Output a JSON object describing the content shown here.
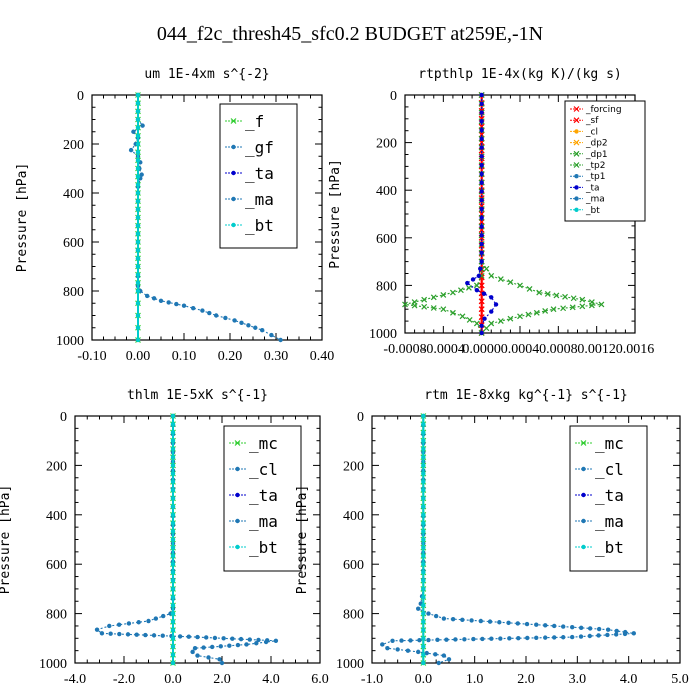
{
  "figure_title": "044_f2c_thresh45_sfc0.2  BUDGET at259E,-1N",
  "colors": {
    "forcing": "#ff0000",
    "sf": "#ff0000",
    "cl_orange": "#ffa500",
    "dp2": "#ffa500",
    "dp1": "#2ca02c",
    "tp2": "#2ca02c",
    "tp1": "#1f77b4",
    "ta": "#0000cc",
    "ma": "#1f77b4",
    "bt": "#00cccc",
    "f": "#32cd32",
    "gf": "#1f77b4",
    "mc": "#32cd32",
    "cl": "#1f77b4"
  },
  "chart_data": [
    {
      "type": "line",
      "title": "um   1E-4xm s^{-2}",
      "ylabel": "Pressure [hPa]",
      "xlim": [
        -0.1,
        0.4
      ],
      "ylim": [
        1000,
        0
      ],
      "xticks": [
        "-0.10",
        "0.00",
        "0.10",
        "0.20",
        "0.30",
        "0.40"
      ],
      "yticks": [
        "0",
        "200",
        "400",
        "600",
        "800",
        "1000"
      ],
      "legend": {
        "style": "big",
        "entries": [
          "_f",
          "_gf",
          "_ta",
          "_ma",
          "_bt"
        ]
      },
      "series": [
        {
          "name": "_f",
          "color": "f",
          "marker": "x",
          "pressure": [
            0,
            100,
            200,
            300,
            400,
            500,
            600,
            700,
            800,
            850,
            900,
            950,
            1000
          ],
          "values": [
            0,
            0,
            0,
            0,
            0,
            0,
            0,
            0,
            0,
            0,
            0,
            0,
            0
          ]
        },
        {
          "name": "_gf",
          "color": "gf",
          "marker": "dot",
          "pressure": [
            0,
            100,
            125,
            150,
            175,
            200,
            225,
            250,
            275,
            300,
            325,
            340,
            375,
            400,
            500,
            600,
            700,
            780,
            800,
            820,
            840,
            860,
            880,
            900,
            920,
            940,
            960,
            980,
            1000
          ],
          "values": [
            0,
            0,
            0.01,
            -0.01,
            0,
            -0.005,
            -0.015,
            0,
            0.005,
            0.003,
            0.008,
            0.005,
            0,
            0,
            0,
            0,
            0,
            0,
            0.005,
            0.02,
            0.05,
            0.1,
            0.14,
            0.17,
            0.21,
            0.24,
            0.27,
            0.29,
            0.31
          ]
        },
        {
          "name": "_bt",
          "color": "bt",
          "marker": "dot",
          "pressure": [
            0,
            100,
            200,
            300,
            400,
            500,
            600,
            700,
            800,
            850,
            900,
            950,
            1000
          ],
          "values": [
            0,
            0,
            0,
            0,
            0,
            0,
            0,
            0,
            0,
            0,
            0,
            0,
            0
          ]
        }
      ]
    },
    {
      "type": "line",
      "title": "rtpthlp   1E-4x(kg K)/(kg s)",
      "ylabel": "Pressure [hPa]",
      "xlim": [
        -0.0008,
        0.0016
      ],
      "ylim": [
        1000,
        0
      ],
      "xticks": [
        "-0.0008",
        "-0.0004",
        "0.0000",
        "0.0004",
        "0.0008",
        "0.0012",
        "0.0016"
      ],
      "yticks": [
        "0",
        "200",
        "400",
        "600",
        "800",
        "1000"
      ],
      "legend": {
        "style": "small",
        "entries": [
          "_forcing",
          "_sf",
          "_cl",
          "_dp2",
          "_dp1",
          "_tp2",
          "_tp1",
          "_ta",
          "_ma",
          "_bt"
        ]
      },
      "series": [
        {
          "name": "_forcing",
          "color": "forcing",
          "marker": "x",
          "pressure": [
            0,
            100,
            200,
            300,
            400,
            500,
            600,
            700,
            800,
            900,
            1000
          ],
          "values": [
            0,
            0,
            0,
            0,
            0,
            0,
            0,
            0,
            0,
            0,
            0
          ]
        },
        {
          "name": "_sf",
          "color": "sf",
          "marker": "x",
          "pressure": [
            0,
            100,
            200,
            300,
            400,
            500,
            600,
            700,
            800,
            900,
            1000
          ],
          "values": [
            0,
            0,
            0,
            0,
            0,
            0,
            0,
            0,
            0,
            0,
            0
          ]
        },
        {
          "name": "_dp1",
          "color": "dp1",
          "marker": "x",
          "pressure": [
            0,
            700,
            760,
            800,
            830,
            860,
            880,
            900,
            930,
            960,
            1000
          ],
          "values": [
            0,
            0,
            0,
            -5e-05,
            -0.0003,
            -0.0006,
            -0.0008,
            -0.0004,
            -0.0002,
            -5e-05,
            0
          ]
        },
        {
          "name": "_tp2",
          "color": "tp2",
          "marker": "x",
          "pressure": [
            0,
            700,
            760,
            800,
            830,
            860,
            880,
            900,
            930,
            960,
            1000
          ],
          "values": [
            0,
            0,
            0.0001,
            0.0004,
            0.0006,
            0.00105,
            0.00125,
            0.00075,
            0.0004,
            0.0001,
            0
          ]
        },
        {
          "name": "_ta",
          "color": "ta",
          "marker": "dot",
          "pressure": [
            0,
            700,
            760,
            790,
            820,
            850,
            880,
            910,
            940,
            970,
            1000
          ],
          "values": [
            0,
            0,
            -3e-05,
            -0.00015,
            -5e-05,
            0.0001,
            0.00015,
            0.0001,
            3e-05,
            0,
            0
          ]
        }
      ]
    },
    {
      "type": "line",
      "title": "thlm   1E-5xK s^{-1}",
      "ylabel": "Pressure [hPa]",
      "xlim": [
        -4.0,
        6.0
      ],
      "ylim": [
        1000,
        0
      ],
      "xticks": [
        "-4.0",
        "-2.0",
        "0.0",
        "2.0",
        "4.0",
        "6.0"
      ],
      "yticks": [
        "0",
        "200",
        "400",
        "600",
        "800",
        "1000"
      ],
      "legend": {
        "style": "big",
        "entries": [
          "_mc",
          "_cl",
          "_ta",
          "_ma",
          "_bt"
        ]
      },
      "series": [
        {
          "name": "_mc",
          "color": "mc",
          "marker": "x",
          "pressure": [
            0,
            100,
            200,
            300,
            400,
            500,
            600,
            700,
            800,
            900,
            1000
          ],
          "values": [
            0,
            0,
            0,
            0,
            0,
            0,
            0,
            0,
            0,
            0,
            0
          ]
        },
        {
          "name": "_cl",
          "color": "cl",
          "marker": "dot",
          "pressure": [
            0,
            700,
            780,
            800,
            830,
            850,
            865,
            880,
            895,
            910,
            925,
            940,
            955,
            970,
            985,
            1000
          ],
          "values": [
            0,
            0,
            0,
            -0.1,
            -1.0,
            -2.6,
            -3.1,
            -2.9,
            1.0,
            4.2,
            3.0,
            0.9,
            0.8,
            1.0,
            1.9,
            2.0
          ]
        },
        {
          "name": "_bt",
          "color": "bt",
          "marker": "dot",
          "pressure": [
            0,
            100,
            200,
            300,
            400,
            500,
            600,
            700,
            800,
            900,
            1000
          ],
          "values": [
            0,
            0,
            0,
            0,
            0,
            0,
            0,
            0,
            0,
            0,
            0
          ]
        }
      ]
    },
    {
      "type": "line",
      "title": "rtm   1E-8xkg kg^{-1} s^{-1}",
      "ylabel": "Pressure [hPa]",
      "xlim": [
        -1.0,
        5.0
      ],
      "ylim": [
        1000,
        0
      ],
      "xticks": [
        "-1.0",
        "0.0",
        "1.0",
        "2.0",
        "3.0",
        "4.0",
        "5.0"
      ],
      "yticks": [
        "0",
        "200",
        "400",
        "600",
        "800",
        "1000"
      ],
      "legend": {
        "style": "big",
        "entries": [
          "_mc",
          "_cl",
          "_ta",
          "_ma",
          "_bt"
        ]
      },
      "series": [
        {
          "name": "_mc",
          "color": "mc",
          "marker": "x",
          "pressure": [
            0,
            100,
            200,
            300,
            400,
            500,
            600,
            700,
            800,
            900,
            1000
          ],
          "values": [
            0,
            0,
            0,
            0,
            0,
            0,
            0,
            0,
            0,
            0,
            0
          ]
        },
        {
          "name": "_cl",
          "color": "cl",
          "marker": "dot",
          "pressure": [
            0,
            700,
            760,
            780,
            800,
            820,
            845,
            865,
            880,
            895,
            910,
            925,
            940,
            955,
            970,
            985,
            1000
          ],
          "values": [
            0,
            0,
            -0.05,
            -0.1,
            0.1,
            0.4,
            2.2,
            3.6,
            4.1,
            2.9,
            -0.6,
            -0.8,
            -0.7,
            -0.1,
            0.4,
            0.5,
            0.3
          ]
        },
        {
          "name": "_bt",
          "color": "bt",
          "marker": "dot",
          "pressure": [
            0,
            100,
            200,
            300,
            400,
            500,
            600,
            700,
            800,
            900,
            1000
          ],
          "values": [
            0,
            0,
            0,
            0,
            0,
            0,
            0,
            0,
            0,
            0,
            0
          ]
        }
      ]
    }
  ]
}
